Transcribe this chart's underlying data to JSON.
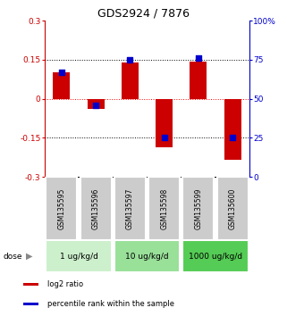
{
  "title": "GDS2924 / 7876",
  "samples": [
    "GSM135595",
    "GSM135596",
    "GSM135597",
    "GSM135598",
    "GSM135599",
    "GSM135600"
  ],
  "log2_ratio": [
    0.1,
    -0.04,
    0.14,
    -0.185,
    0.143,
    -0.235
  ],
  "percentile": [
    67,
    46,
    75,
    25,
    76,
    25
  ],
  "ylim_left": [
    -0.3,
    0.3
  ],
  "ylim_right": [
    0,
    100
  ],
  "yticks_left": [
    -0.3,
    -0.15,
    0,
    0.15,
    0.3
  ],
  "yticks_right": [
    0,
    25,
    50,
    75,
    100
  ],
  "yticklabels_right": [
    "0",
    "25",
    "50",
    "75",
    "100%"
  ],
  "hlines_black": [
    -0.15,
    0.15
  ],
  "hline_red": 0.0,
  "dose_groups": [
    {
      "label": "1 ug/kg/d",
      "samples": [
        0,
        1
      ],
      "color": "#ccf0cc"
    },
    {
      "label": "10 ug/kg/d",
      "samples": [
        2,
        3
      ],
      "color": "#99e099"
    },
    {
      "label": "1000 ug/kg/d",
      "samples": [
        4,
        5
      ],
      "color": "#55cc55"
    }
  ],
  "bar_color": "#cc0000",
  "dot_color": "#0000cc",
  "bar_width": 0.5,
  "dot_size": 18,
  "legend_labels": [
    "log2 ratio",
    "percentile rank within the sample"
  ],
  "dose_label": "dose",
  "bg_color": "#ffffff",
  "axis_color_left": "#cc0000",
  "axis_color_right": "#0000cc",
  "sample_box_color": "#cccccc"
}
